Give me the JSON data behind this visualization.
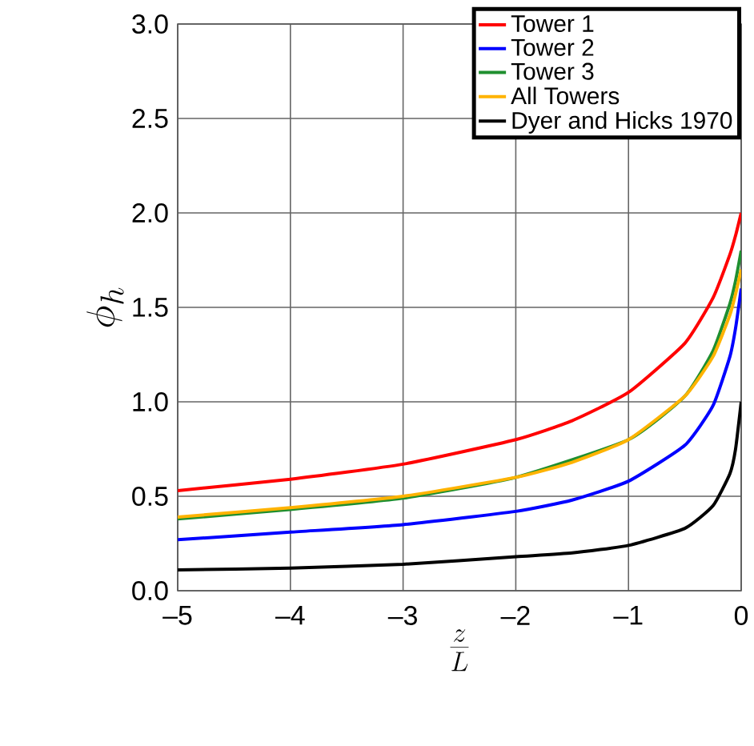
{
  "chart_data": {
    "type": "line",
    "xlabel": "\\frac{z}{L}",
    "ylabel": "\\phi_h",
    "x": [
      -5,
      -4,
      -3,
      -2,
      -1.5,
      -1,
      -0.5,
      -0.25,
      -0.1,
      -0.05,
      0
    ],
    "series": [
      {
        "name": "Tower 1",
        "color": "#ff0000",
        "values": [
          0.53,
          0.59,
          0.67,
          0.8,
          0.9,
          1.05,
          1.31,
          1.55,
          1.78,
          1.88,
          2.0
        ]
      },
      {
        "name": "Tower 2",
        "color": "#0000ff",
        "values": [
          0.27,
          0.31,
          0.35,
          0.42,
          0.48,
          0.58,
          0.77,
          0.98,
          1.24,
          1.39,
          1.6
        ]
      },
      {
        "name": "Tower 3",
        "color": "#1f8f2f",
        "values": [
          0.38,
          0.43,
          0.49,
          0.6,
          null,
          0.8,
          1.03,
          1.27,
          1.52,
          1.64,
          1.8
        ]
      },
      {
        "name": "All Towers",
        "color": "#ffb300",
        "values": [
          0.39,
          0.44,
          0.5,
          0.6,
          0.68,
          0.8,
          1.03,
          1.24,
          1.46,
          1.57,
          1.7
        ]
      },
      {
        "name": "Dyer and Hicks 1970",
        "color": "#000000",
        "values": [
          0.11,
          0.12,
          0.14,
          0.18,
          0.2,
          0.24,
          0.33,
          0.45,
          0.62,
          0.75,
          1.0
        ]
      }
    ],
    "xlim": [
      -5,
      0
    ],
    "ylim": [
      0,
      3
    ],
    "xticks": [
      {
        "value": -5,
        "label": "–5"
      },
      {
        "value": -4,
        "label": "–4"
      },
      {
        "value": -3,
        "label": "–3"
      },
      {
        "value": -2,
        "label": "–2"
      },
      {
        "value": -1,
        "label": "–1"
      },
      0
    ],
    "yticks": [
      {
        "value": 0,
        "label": "0.0"
      },
      {
        "value": 0.5,
        "label": "0.5"
      },
      {
        "value": 1,
        "label": "1.0"
      },
      {
        "value": 1.5,
        "label": "1.5"
      },
      {
        "value": 2,
        "label": "2.0"
      },
      {
        "value": 2.5,
        "label": "2.5"
      },
      {
        "value": 3,
        "label": "3.0"
      }
    ],
    "grid": true,
    "legend": "top right",
    "marker": "none",
    "line_style": "solid"
  }
}
